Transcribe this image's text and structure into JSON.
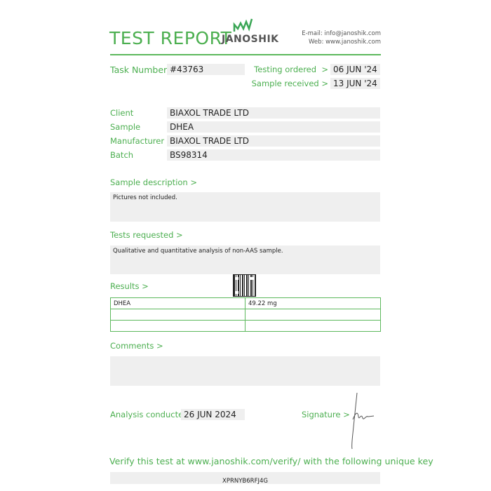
{
  "header": {
    "title": "TEST REPORT",
    "logo_text": "JANOSHIK",
    "email": "E-mail: info@janoshik.com",
    "web": "Web: www.janoshik.com"
  },
  "task": {
    "label": "Task Number",
    "value": "#43763"
  },
  "dates": {
    "ordered_label": "Testing ordered  >",
    "ordered_value": "06 JUN '24",
    "received_label": "Sample received >",
    "received_value": "13 JUN '24"
  },
  "info": [
    {
      "label": "Client",
      "value": "BIAXOL TRADE LTD"
    },
    {
      "label": "Sample",
      "value": "DHEA"
    },
    {
      "label": "Manufacturer",
      "value": "BIAXOL TRADE LTD"
    },
    {
      "label": "Batch",
      "value": "BS98314"
    }
  ],
  "sample_description": {
    "label": "Sample description >",
    "text": "Pictures not included."
  },
  "tests_requested": {
    "label": "Tests requested >",
    "text": "Qualitative and quantitative analysis of non-AAS sample."
  },
  "results": {
    "label": "Results >",
    "rows": [
      [
        "DHEA",
        "49.22 mg"
      ],
      [
        "",
        ""
      ],
      [
        "",
        ""
      ]
    ]
  },
  "comments": {
    "label": "Comments >",
    "text": ""
  },
  "analysis": {
    "label": "Analysis conducted >",
    "value": "26 JUN 2024"
  },
  "signature": {
    "label": "Signature >"
  },
  "verify": {
    "text": "Verify this test at www.janoshik.com/verify/ with the following unique key",
    "key": "XPRNYB6RFJ4G"
  },
  "colors": {
    "accent": "#4caf50",
    "field_bg": "#efefef"
  }
}
